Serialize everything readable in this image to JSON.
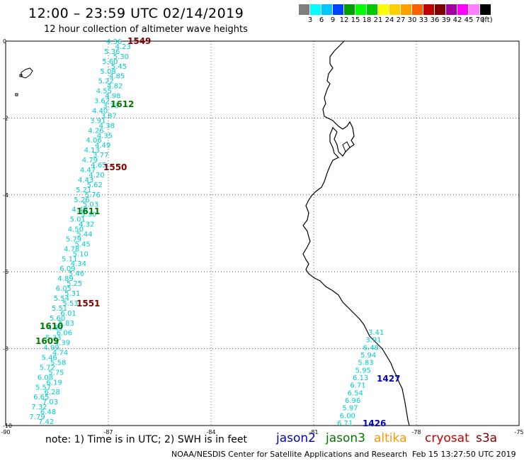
{
  "title": "12:00 – 23:59 UTC 02/14/2019",
  "subtitle": "12 hour collection of altimeter wave heights",
  "scale": {
    "colors": [
      "#7f7f7f",
      "#00ffff",
      "#00c8ff",
      "#0040ff",
      "#00a000",
      "#00ff00",
      "#00c800",
      "#ffff00",
      "#ffd000",
      "#ffa000",
      "#ff6000",
      "#c00000",
      "#800000",
      "#a000a0",
      "#ff00ff",
      "#ff80ff",
      "#000000"
    ],
    "labels": [
      "3",
      "6",
      "9",
      "12",
      "15",
      "18",
      "21",
      "24",
      "27",
      "30",
      "33",
      "36",
      "39",
      "42",
      "45",
      "70",
      "(ft)"
    ]
  },
  "axes": {
    "x_ticks": [
      "-90",
      "-87",
      "-84",
      "-81",
      "-78",
      "-75"
    ],
    "y_ticks": [
      "0",
      "-2",
      "-4",
      "-6",
      "-8",
      "-10"
    ]
  },
  "tracks": {
    "jason3": {
      "color": "#00cdcd",
      "values": [
        "4.36",
        "4.23",
        "5.36",
        "5.30",
        "5.60",
        "5.45",
        "5.08",
        "4.85",
        "5.22",
        "4.82",
        "4.55",
        "4.98",
        "3.62",
        "3.73",
        "4.40",
        "3.87",
        "3.91",
        "4.38",
        "4.26",
        "4.35",
        "4.06",
        "4.49",
        "4.13",
        "3.77",
        "4.79",
        "4.65",
        "4.47",
        "4.20",
        "4.43",
        "5.62",
        "5.21",
        "5.76",
        "5.26",
        "5.03",
        "4.48",
        "5.30",
        "5.01",
        "4.32",
        "4.50",
        "5.44",
        "5.79",
        "5.45",
        "4.78",
        "5.10",
        "5.11",
        "4.34",
        "6.09",
        "5.46",
        "4.89",
        "5.25",
        "6.05",
        "5.31",
        "5.54",
        "5.53",
        "5.51",
        "6.01",
        "5.60",
        "5.83",
        "4.81",
        "6.06",
        "5.33",
        "4.39",
        "4.99",
        "4.74",
        "5.46",
        "5.58",
        "5.72",
        "5.75",
        "6.08",
        "6.19",
        "5.57",
        "6.28",
        "6.65",
        "7.03",
        "7.32",
        "6.48",
        "7.79",
        "7.42"
      ]
    },
    "coastal": {
      "color": "#00cdcd",
      "values": [
        "3.41",
        "3.91",
        "6.48",
        "5.94",
        "5.83",
        "5.95",
        "6.13",
        "6.71",
        "6.54",
        "6.96",
        "5.97",
        "6.00",
        "6.71"
      ]
    }
  },
  "time_labels": [
    {
      "text": "1549",
      "color": "#800000"
    },
    {
      "text": "1612",
      "color": "#007800"
    },
    {
      "text": "1550",
      "color": "#800000"
    },
    {
      "text": "1611",
      "color": "#007800"
    },
    {
      "text": "1551",
      "color": "#800000"
    },
    {
      "text": "1610",
      "color": "#007800"
    },
    {
      "text": "1609",
      "color": "#007800"
    },
    {
      "text": "1427",
      "color": "#0000c8"
    },
    {
      "text": "1426",
      "color": "#0000c8"
    }
  ],
  "note": "note: 1) Time is in UTC; 2) SWH is in feet",
  "legend": [
    {
      "text": "jason2",
      "color": "#0000c8"
    },
    {
      "text": "jason3",
      "color": "#007800"
    },
    {
      "text": "altika",
      "color": "#ff9600"
    },
    {
      "text": "cryosat",
      "color": "#c80000"
    },
    {
      "text": "s3a",
      "color": "#800000"
    }
  ],
  "credit": "NOAA/NESDIS Center for Satellite Applications and Research",
  "stamp": "Feb 15 13:27:50 UTC 2019"
}
